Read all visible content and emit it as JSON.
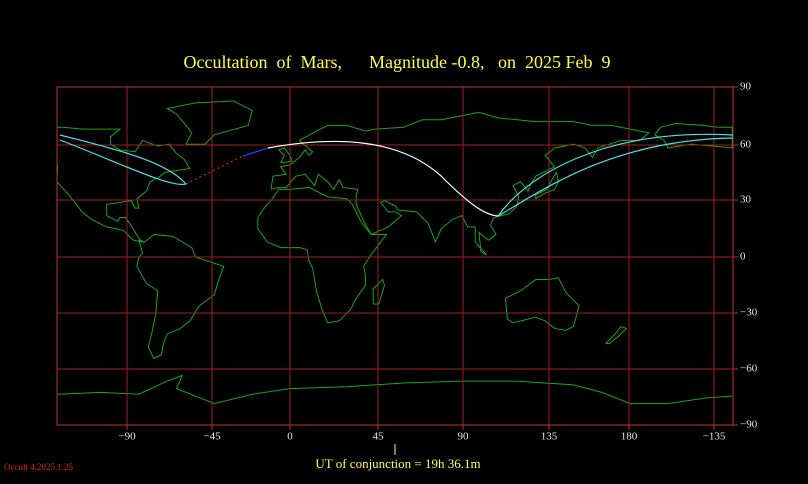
{
  "map": {
    "title": "Occultation  of  Mars,      Magnitude -0.8,   on  2025 Feb  9",
    "x_ticks": [
      "−90",
      "−45",
      "0",
      "45",
      "90",
      "135",
      "180",
      "−135"
    ],
    "y_ticks": [
      "90",
      "60",
      "30",
      "0",
      "−30",
      "−60",
      "−90"
    ],
    "footer": "UT of conjunction = 19h 36.1m",
    "version": "Occult 4.2025.1.25"
  }
}
